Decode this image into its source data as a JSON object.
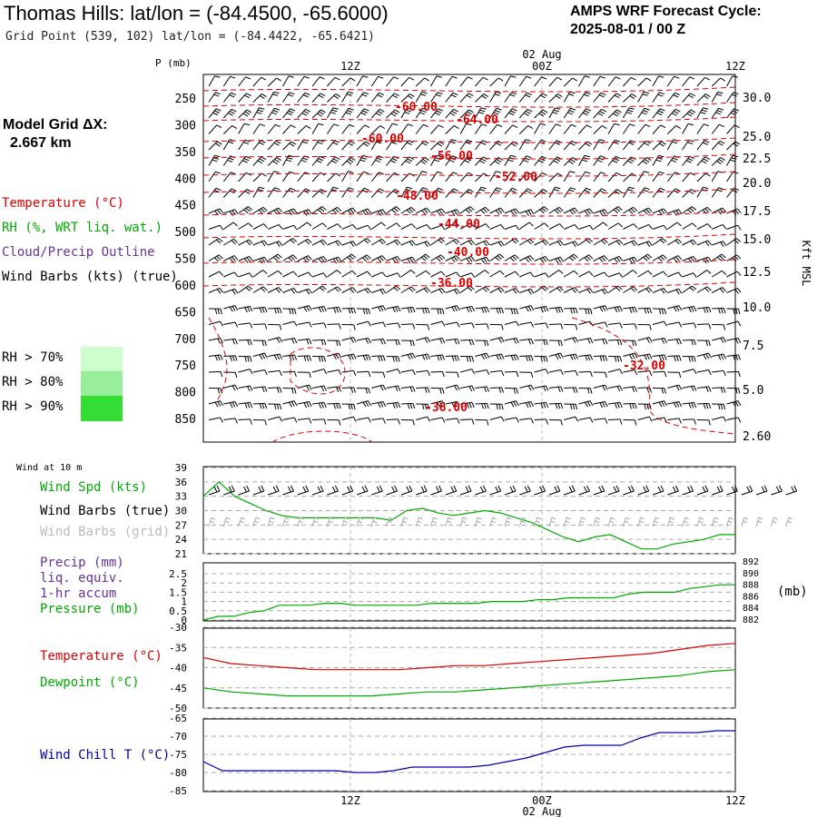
{
  "header": {
    "title": "Thomas Hills:  lat/lon = (-84.4500, -65.6000)",
    "subtitle": "Grid Point (539, 102) lat/lon = (-84.4422, -65.6421)",
    "cycle_line1": "AMPS WRF Forecast Cycle:",
    "cycle_line2": "2025-08-01 / 00  Z"
  },
  "model_grid": {
    "line1": "Model Grid ΔX:",
    "line2": "2.667 km"
  },
  "legend_upper": {
    "temperature": "Temperature (°C)",
    "rh": "RH (%, WRT liq. wat.)",
    "cloud": "Cloud/Precip Outline",
    "wind": "Wind Barbs (kts) (true)",
    "rh70": "RH > 70%",
    "rh80": "RH > 80%",
    "rh90": "RH > 90%"
  },
  "colors": {
    "temperature": "#dd0000",
    "rh": "#00aa00",
    "cloud": "#663399",
    "rh70": "#ccffcc",
    "rh80": "#99ee99",
    "rh90": "#33dd33",
    "windchill": "#0000aa",
    "grid_barb": "#aaaaaa"
  },
  "time_axis": {
    "top_labels": [
      "12Z",
      "00Z",
      "12Z"
    ],
    "date_label": "02 Aug",
    "bottom_labels": [
      "12Z",
      "00Z",
      "12Z"
    ]
  },
  "panels": {
    "wind10m": {
      "header": "Wind at 10 m",
      "label_speed": "Wind Spd (kts)",
      "label_barbs": "Wind Barbs (true)",
      "label_grid": "Wind Barbs (grid)"
    },
    "precip": {
      "label1": "Precip (mm)",
      "label2": "liq. equiv.",
      "label3": "1-hr accum",
      "label_pressure": "Pressure (mb)",
      "right_unit": "(mb)"
    },
    "temp": {
      "label_temp": "Temperature (°C)",
      "label_dew": "Dewpoint (°C)"
    },
    "windchill": {
      "label": "Wind Chill T (°C)"
    }
  },
  "chart_data": [
    {
      "type": "line",
      "panel": "vertical cross-section",
      "ylabel": "P (mb)",
      "right_label": "Kft MSL",
      "y_ticks": [
        250,
        300,
        350,
        400,
        450,
        500,
        550,
        600,
        650,
        700,
        750,
        800,
        850
      ],
      "right_ticks": [
        "30.0",
        "25.0",
        "22.5",
        "20.0",
        "17.5",
        "15.0",
        "12.5",
        "10.0",
        "7.5",
        "5.0",
        "2.60"
      ],
      "isotherm_labels": [
        "-60.00",
        "-64.00",
        "-60.00",
        "-56.00",
        "-52.00",
        "-48.00",
        "-44.00",
        "-40.00",
        "-36.00",
        "-32.00",
        "-36.00"
      ]
    },
    {
      "type": "line",
      "panel": "wind at 10 m",
      "y_ticks": [
        39,
        36,
        33,
        30,
        27,
        24,
        21
      ],
      "ylim": [
        21,
        39
      ],
      "series": [
        {
          "values": [
            33,
            36,
            33,
            31.5,
            30,
            29,
            28.5,
            28.5,
            28.5,
            28.5,
            28.5,
            28.5,
            28,
            30,
            30.5,
            29.5,
            29,
            29.5,
            30,
            29.5,
            28.5,
            27.5,
            26,
            24.5,
            23.5,
            24.5,
            25,
            23.5,
            22,
            22,
            23,
            23.5,
            24,
            25,
            25
          ]
        }
      ]
    },
    {
      "type": "line",
      "panel": "precip and pressure",
      "y_ticks": [
        2.5,
        2.0,
        1.5,
        1.0,
        0.5,
        0.0
      ],
      "right_ticks": [
        892,
        890,
        888,
        886,
        884,
        882
      ],
      "ylim": [
        0,
        2.5
      ],
      "series": [
        {
          "values": [
            0.0,
            0.2,
            0.2,
            0.4,
            0.5,
            0.8,
            0.8,
            0.8,
            0.9,
            0.9,
            0.8,
            0.8,
            0.8,
            0.8,
            0.8,
            0.9,
            0.9,
            0.9,
            0.9,
            1.0,
            1.0,
            1.0,
            1.1,
            1.1,
            1.2,
            1.2,
            1.2,
            1.2,
            1.4,
            1.5,
            1.5,
            1.5,
            1.7,
            1.8,
            1.9,
            1.9
          ]
        }
      ]
    },
    {
      "type": "line",
      "panel": "temperature and dewpoint",
      "y_ticks": [
        -30,
        -35,
        -40,
        -45,
        -50
      ],
      "ylim": [
        -50,
        -30
      ],
      "series": [
        {
          "values": [
            -37.5,
            -39,
            -39.5,
            -40,
            -40.5,
            -40.5,
            -40.5,
            -40.5,
            -40,
            -39.5,
            -39.5,
            -39,
            -38.5,
            -38,
            -37.5,
            -37,
            -36.5,
            -35.5,
            -34.5,
            -34
          ]
        },
        {
          "values": [
            -45,
            -46,
            -46.5,
            -47,
            -47,
            -47,
            -47,
            -46.5,
            -46,
            -46,
            -45.5,
            -45,
            -44.5,
            -44,
            -43.5,
            -43,
            -42.5,
            -42,
            -41,
            -40.5
          ]
        }
      ]
    },
    {
      "type": "line",
      "panel": "wind chill",
      "y_ticks": [
        -65,
        -70,
        -75,
        -80,
        -85
      ],
      "ylim": [
        -85,
        -65
      ],
      "series": [
        {
          "values": [
            -77,
            -79.5,
            -79.5,
            -79.5,
            -79.5,
            -79.5,
            -79.5,
            -79.5,
            -80,
            -80,
            -79.5,
            -78.5,
            -78.5,
            -78.5,
            -78.5,
            -78,
            -77,
            -76,
            -74.5,
            -73,
            -72.5,
            -72.5,
            -72.5,
            -70.5,
            -69,
            -69,
            -69,
            -68.5,
            -68.5
          ]
        }
      ]
    }
  ]
}
